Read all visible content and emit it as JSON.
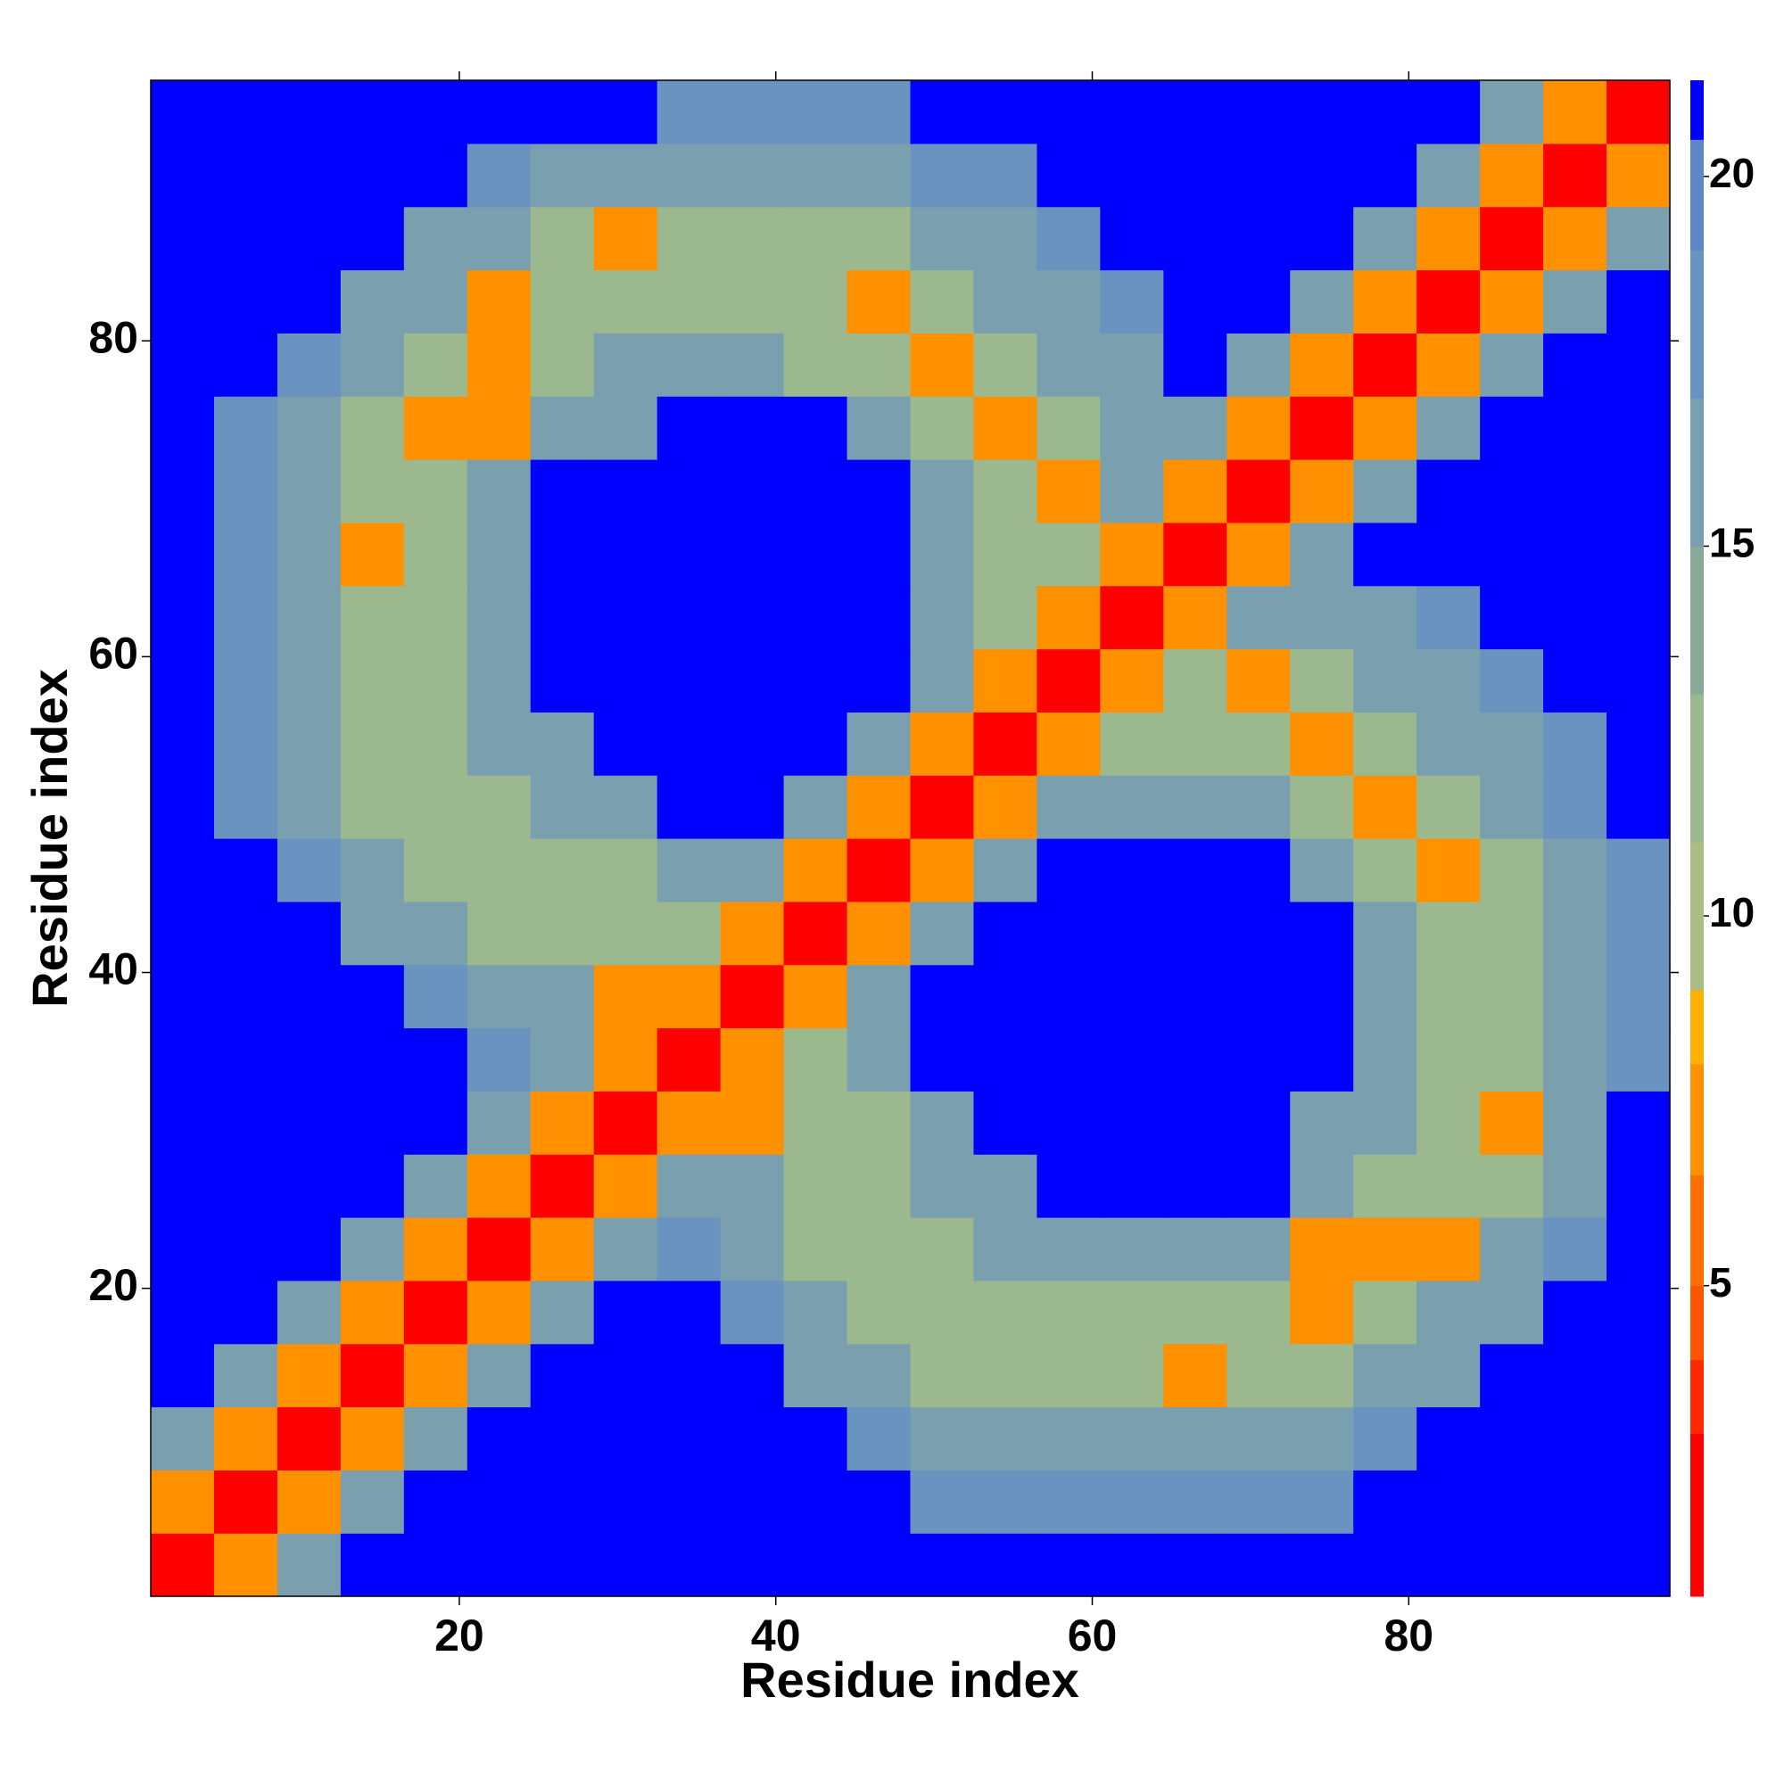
{
  "chart_data": {
    "type": "heatmap",
    "xlabel": "Residue index",
    "ylabel": "Residue index",
    "x": [
      2.5,
      6.5,
      10.5,
      14.5,
      18.5,
      22.5,
      26.5,
      30.5,
      34.5,
      38.5,
      42.5,
      46.5,
      50.5,
      54.5,
      58.5,
      62.5,
      66.5,
      70.5,
      74.5,
      78.5,
      82.5,
      86.5,
      90.5,
      94.5
    ],
    "y": [
      2.5,
      6.5,
      10.5,
      14.5,
      18.5,
      22.5,
      26.5,
      30.5,
      34.5,
      38.5,
      42.5,
      46.5,
      50.5,
      54.5,
      58.5,
      62.5,
      66.5,
      70.5,
      74.5,
      78.5,
      82.5,
      86.5,
      90.5,
      94.5
    ],
    "z": [
      [
        2,
        7,
        15,
        21,
        21,
        21,
        21,
        21,
        21,
        21,
        21,
        21,
        21,
        21,
        21,
        21,
        21,
        21,
        21,
        21,
        21,
        21,
        21,
        21
      ],
      [
        7,
        2,
        7,
        15,
        21,
        21,
        21,
        21,
        21,
        21,
        21,
        21,
        18,
        18,
        18,
        18,
        18,
        18,
        18,
        21,
        21,
        21,
        21,
        21
      ],
      [
        15,
        7,
        2,
        7,
        15,
        21,
        21,
        21,
        21,
        21,
        21,
        18,
        15,
        15,
        15,
        15,
        15,
        15,
        15,
        18,
        21,
        21,
        21,
        21
      ],
      [
        21,
        15,
        7,
        2,
        7,
        15,
        21,
        21,
        21,
        21,
        15,
        15,
        12,
        12,
        12,
        12,
        7,
        12,
        12,
        15,
        15,
        21,
        21,
        21
      ],
      [
        21,
        21,
        15,
        7,
        2,
        7,
        15,
        21,
        21,
        18,
        15,
        12,
        12,
        12,
        12,
        12,
        12,
        12,
        7,
        12,
        15,
        15,
        21,
        21
      ],
      [
        21,
        21,
        21,
        15,
        7,
        2,
        7,
        15,
        18,
        15,
        12,
        12,
        12,
        16,
        16,
        16,
        16,
        16,
        7,
        7,
        7,
        15,
        18,
        21
      ],
      [
        21,
        21,
        21,
        21,
        15,
        7,
        2,
        7,
        15,
        15,
        12,
        12,
        16,
        16,
        21,
        21,
        21,
        21,
        16,
        12,
        12,
        12,
        15,
        21
      ],
      [
        21,
        21,
        21,
        21,
        21,
        15,
        7,
        2,
        7,
        7,
        12,
        12,
        16,
        21,
        21,
        21,
        21,
        21,
        16,
        16,
        12,
        7,
        15,
        21
      ],
      [
        21,
        21,
        21,
        21,
        21,
        18,
        15,
        7,
        2,
        7,
        12,
        16,
        21,
        21,
        21,
        21,
        21,
        21,
        21,
        16,
        12,
        12,
        15,
        18
      ],
      [
        21,
        21,
        21,
        21,
        18,
        15,
        15,
        7,
        7,
        2,
        7,
        15,
        21,
        21,
        21,
        21,
        21,
        21,
        21,
        16,
        12,
        12,
        15,
        18
      ],
      [
        21,
        21,
        21,
        15,
        15,
        12,
        12,
        12,
        12,
        7,
        2,
        7,
        15,
        21,
        21,
        21,
        21,
        21,
        21,
        16,
        12,
        12,
        15,
        18
      ],
      [
        21,
        21,
        18,
        15,
        12,
        12,
        12,
        12,
        16,
        15,
        7,
        2,
        7,
        15,
        21,
        21,
        21,
        21,
        16,
        12,
        7,
        12,
        15,
        18
      ],
      [
        21,
        18,
        15,
        12,
        12,
        12,
        16,
        16,
        21,
        21,
        15,
        7,
        2,
        7,
        15,
        16,
        16,
        16,
        12,
        7,
        12,
        15,
        18,
        21
      ],
      [
        21,
        18,
        15,
        12,
        12,
        16,
        16,
        21,
        21,
        21,
        21,
        15,
        7,
        2,
        7,
        12,
        12,
        12,
        7,
        12,
        15,
        15,
        18,
        21
      ],
      [
        21,
        18,
        15,
        12,
        12,
        16,
        21,
        21,
        21,
        21,
        21,
        21,
        15,
        7,
        2,
        7,
        12,
        7,
        12,
        15,
        15,
        18,
        21,
        21
      ],
      [
        21,
        18,
        15,
        12,
        12,
        16,
        21,
        21,
        21,
        21,
        21,
        21,
        16,
        12,
        7,
        2,
        7,
        15,
        15,
        15,
        18,
        21,
        21,
        21
      ],
      [
        21,
        18,
        15,
        7,
        12,
        16,
        21,
        21,
        21,
        21,
        21,
        21,
        16,
        12,
        12,
        7,
        2,
        7,
        15,
        21,
        21,
        21,
        21,
        21
      ],
      [
        21,
        18,
        15,
        12,
        12,
        16,
        21,
        21,
        21,
        21,
        21,
        21,
        16,
        12,
        7,
        15,
        7,
        2,
        7,
        15,
        21,
        21,
        21,
        21
      ],
      [
        21,
        18,
        15,
        12,
        7,
        7,
        16,
        16,
        21,
        21,
        21,
        16,
        12,
        7,
        12,
        15,
        15,
        7,
        2,
        7,
        15,
        21,
        21,
        21
      ],
      [
        21,
        21,
        18,
        15,
        12,
        7,
        12,
        16,
        16,
        16,
        12,
        12,
        7,
        12,
        15,
        15,
        21,
        15,
        7,
        2,
        7,
        15,
        21,
        21
      ],
      [
        21,
        21,
        21,
        15,
        15,
        7,
        12,
        12,
        12,
        12,
        12,
        7,
        12,
        15,
        15,
        18,
        21,
        21,
        15,
        7,
        2,
        7,
        15,
        21
      ],
      [
        21,
        21,
        21,
        21,
        15,
        15,
        12,
        7,
        12,
        12,
        12,
        12,
        15,
        15,
        18,
        21,
        21,
        21,
        21,
        15,
        7,
        2,
        7,
        15
      ],
      [
        21,
        21,
        21,
        21,
        21,
        18,
        15,
        15,
        15,
        15,
        15,
        15,
        18,
        18,
        21,
        21,
        21,
        21,
        21,
        21,
        15,
        7,
        2,
        7
      ],
      [
        21,
        21,
        21,
        21,
        21,
        21,
        21,
        21,
        18,
        18,
        18,
        18,
        21,
        21,
        21,
        21,
        21,
        21,
        21,
        21,
        21,
        15,
        7,
        2
      ]
    ],
    "xlim": [
      0.5,
      96.5
    ],
    "ylim": [
      0.5,
      96.5
    ],
    "xticks": [
      20,
      40,
      60,
      80
    ],
    "yticks": [
      20,
      40,
      60,
      80
    ],
    "color_bounds": [
      0.8,
      3,
      4,
      5,
      6.5,
      8,
      9,
      11,
      13,
      15,
      17,
      19,
      20.5,
      21.3
    ],
    "colors": [
      "#ff0000",
      "#ff2a00",
      "#ff5500",
      "#ff7000",
      "#ff9000",
      "#ffb000",
      "#a9bd85",
      "#9bb88e",
      "#88aa98",
      "#7a9fae",
      "#6b93bf",
      "#5d88c8",
      "#0000ff"
    ],
    "colorbar_ticks": [
      5,
      10,
      15,
      20
    ]
  }
}
